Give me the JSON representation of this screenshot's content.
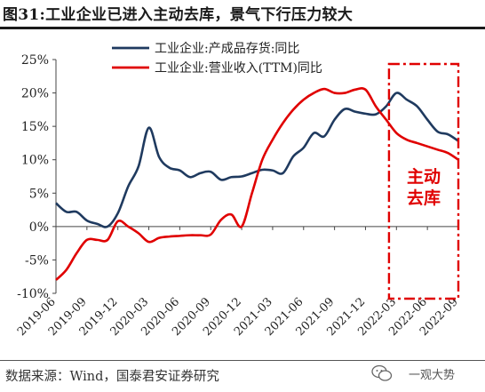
{
  "figure": {
    "title": "图31:工业企业已进入主动去库，景气下行压力较大",
    "source": "数据来源：Wind，国泰君安证券研究",
    "watermark": "一观大势"
  },
  "chart_data": {
    "type": "line",
    "title": "",
    "xlabel": "",
    "ylabel": "",
    "ylim": [
      -10,
      25
    ],
    "y_ticks": [
      "-10%",
      "-5%",
      "0%",
      "5%",
      "10%",
      "15%",
      "20%",
      "25%"
    ],
    "y_tick_values": [
      -10,
      -5,
      0,
      5,
      10,
      15,
      20,
      25
    ],
    "x_range": [
      "2019-06",
      "2022-09"
    ],
    "x_ticks": [
      "2019-06",
      "2019-09",
      "2019-12",
      "2020-03",
      "2020-06",
      "2020-09",
      "2020-12",
      "2021-03",
      "2021-06",
      "2021-09",
      "2021-12",
      "2022-03",
      "2022-06",
      "2022-09"
    ],
    "legend_position": "top",
    "grid": false,
    "series": [
      {
        "name": "工业企业:产成品存货:同比",
        "color": "#1f3a5f",
        "points": [
          [
            "2019-06",
            3.5
          ],
          [
            "2019-07",
            2.2
          ],
          [
            "2019-08",
            2.2
          ],
          [
            "2019-09",
            0.9
          ],
          [
            "2019-10",
            0.4
          ],
          [
            "2019-11",
            0.0
          ],
          [
            "2019-12",
            2.0
          ],
          [
            "2020-01",
            6.0
          ],
          [
            "2020-02",
            9.0
          ],
          [
            "2020-03",
            14.8
          ],
          [
            "2020-04",
            10.4
          ],
          [
            "2020-05",
            8.8
          ],
          [
            "2020-06",
            8.4
          ],
          [
            "2020-07",
            7.4
          ],
          [
            "2020-08",
            8.0
          ],
          [
            "2020-09",
            8.2
          ],
          [
            "2020-10",
            7.0
          ],
          [
            "2020-11",
            7.4
          ],
          [
            "2020-12",
            7.5
          ],
          [
            "2021-01",
            8.0
          ],
          [
            "2021-02",
            8.5
          ],
          [
            "2021-03",
            8.4
          ],
          [
            "2021-04",
            8.0
          ],
          [
            "2021-05",
            10.5
          ],
          [
            "2021-06",
            11.8
          ],
          [
            "2021-07",
            14.0
          ],
          [
            "2021-08",
            13.5
          ],
          [
            "2021-09",
            16.0
          ],
          [
            "2021-10",
            17.6
          ],
          [
            "2021-11",
            17.2
          ],
          [
            "2021-12",
            16.9
          ],
          [
            "2022-01",
            16.8
          ],
          [
            "2022-02",
            18.0
          ],
          [
            "2022-03",
            20.0
          ],
          [
            "2022-04",
            19.0
          ],
          [
            "2022-05",
            18.0
          ],
          [
            "2022-06",
            16.0
          ],
          [
            "2022-07",
            14.2
          ],
          [
            "2022-08",
            13.8
          ],
          [
            "2022-09",
            12.8
          ]
        ]
      },
      {
        "name": "工业企业:营业收入(TTM)同比",
        "color": "#e00000",
        "points": [
          [
            "2019-06",
            -8.0
          ],
          [
            "2019-07",
            -6.5
          ],
          [
            "2019-08",
            -4.0
          ],
          [
            "2019-09",
            -2.0
          ],
          [
            "2019-10",
            -2.0
          ],
          [
            "2019-11",
            -2.0
          ],
          [
            "2019-12",
            0.8
          ],
          [
            "2020-01",
            0.0
          ],
          [
            "2020-02",
            -1.0
          ],
          [
            "2020-03",
            -2.3
          ],
          [
            "2020-04",
            -1.7
          ],
          [
            "2020-05",
            -1.5
          ],
          [
            "2020-06",
            -1.4
          ],
          [
            "2020-07",
            -1.3
          ],
          [
            "2020-08",
            -1.3
          ],
          [
            "2020-09",
            -1.2
          ],
          [
            "2020-10",
            1.0
          ],
          [
            "2020-11",
            1.8
          ],
          [
            "2020-12",
            0.0
          ],
          [
            "2021-01",
            5.0
          ],
          [
            "2021-02",
            10.0
          ],
          [
            "2021-03",
            13.0
          ],
          [
            "2021-04",
            15.5
          ],
          [
            "2021-05",
            17.5
          ],
          [
            "2021-06",
            19.0
          ],
          [
            "2021-07",
            20.0
          ],
          [
            "2021-08",
            20.6
          ],
          [
            "2021-09",
            20.0
          ],
          [
            "2021-10",
            20.0
          ],
          [
            "2021-11",
            20.5
          ],
          [
            "2021-12",
            20.5
          ],
          [
            "2022-01",
            18.0
          ],
          [
            "2022-02",
            16.0
          ],
          [
            "2022-03",
            14.0
          ],
          [
            "2022-04",
            13.0
          ],
          [
            "2022-05",
            12.5
          ],
          [
            "2022-06",
            12.0
          ],
          [
            "2022-07",
            11.5
          ],
          [
            "2022-08",
            11.0
          ],
          [
            "2022-09",
            10.0
          ]
        ]
      }
    ],
    "annotations": [
      {
        "text": "主动\n去库",
        "color": "#e00000",
        "range": [
          "2022-04",
          "2022-09"
        ],
        "box_style": "dash-dot"
      }
    ]
  }
}
